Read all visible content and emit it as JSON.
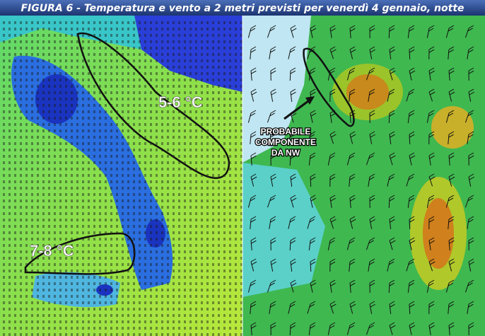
{
  "header": {
    "title": "FIGURA 6 - Temperatura e vento a 2 metri previsti per venerdì 4 gennaio, notte"
  },
  "left_map": {
    "labels": [
      "5-6 °C",
      "7-8 °C"
    ]
  },
  "right_map": {
    "annotation": [
      "PROBABILE",
      "COMPONENTE",
      "DA NW"
    ]
  }
}
